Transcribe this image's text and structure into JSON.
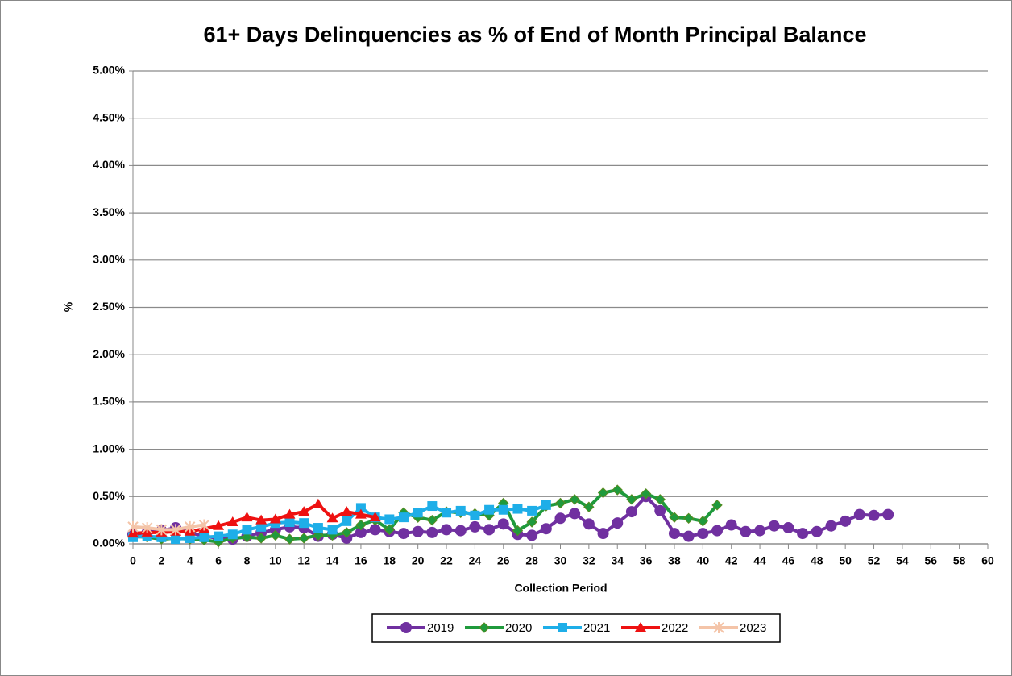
{
  "chart_data": {
    "type": "line",
    "title": "61+ Days Delinquencies as % of End of Month Principal Balance",
    "x_label": "Collection Period",
    "y_label": "%",
    "x": [
      0,
      1,
      2,
      3,
      4,
      5,
      6,
      7,
      8,
      9,
      10,
      11,
      12,
      13,
      14,
      15,
      16,
      17,
      18,
      19,
      20,
      21,
      22,
      23,
      24,
      25,
      26,
      27,
      28,
      29,
      30,
      31,
      32,
      33,
      34,
      35,
      36,
      37,
      38,
      39,
      40,
      41,
      42,
      43,
      44,
      45,
      46,
      47,
      48,
      49,
      50,
      51,
      52,
      53
    ],
    "xlim": [
      0,
      60
    ],
    "xticks": [
      0,
      2,
      4,
      6,
      8,
      10,
      12,
      14,
      16,
      18,
      20,
      22,
      24,
      26,
      28,
      30,
      32,
      34,
      36,
      38,
      40,
      42,
      44,
      46,
      48,
      50,
      52,
      54,
      56,
      58,
      60
    ],
    "ylim": [
      0,
      5
    ],
    "yticks": [
      {
        "value": 0,
        "label": "0.00%"
      },
      {
        "value": 0.5,
        "label": "0.50%"
      },
      {
        "value": 1,
        "label": "1.00%"
      },
      {
        "value": 1.5,
        "label": "1.50%"
      },
      {
        "value": 2,
        "label": "2.00%"
      },
      {
        "value": 2.5,
        "label": "2.50%"
      },
      {
        "value": 3,
        "label": "3.00%"
      },
      {
        "value": 3.5,
        "label": "3.50%"
      },
      {
        "value": 4,
        "label": "4.00%"
      },
      {
        "value": 4.5,
        "label": "4.50%"
      },
      {
        "value": 5,
        "label": "5.00%"
      }
    ],
    "grid": true,
    "legend": "bottom",
    "series": [
      {
        "name": "2019",
        "color": "#7030a0",
        "marker": "circle",
        "values": [
          0.1,
          0.12,
          0.14,
          0.17,
          0.12,
          0.08,
          0.06,
          0.05,
          0.08,
          0.12,
          0.15,
          0.18,
          0.17,
          0.08,
          0.1,
          0.06,
          0.12,
          0.15,
          0.13,
          0.11,
          0.13,
          0.12,
          0.15,
          0.14,
          0.18,
          0.15,
          0.21,
          0.1,
          0.09,
          0.16,
          0.27,
          0.32,
          0.21,
          0.11,
          0.22,
          0.34,
          0.5,
          0.35,
          0.11,
          0.08,
          0.11,
          0.14,
          0.2,
          0.13,
          0.14,
          0.19,
          0.17,
          0.11,
          0.13,
          0.19,
          0.24,
          0.31,
          0.3,
          0.31
        ]
      },
      {
        "name": "2020",
        "color": "#1f9a3c",
        "marker": "diamond",
        "values": [
          0.08,
          0.07,
          0.05,
          0.06,
          0.05,
          0.04,
          0.02,
          0.06,
          0.07,
          0.06,
          0.09,
          0.05,
          0.06,
          0.09,
          0.09,
          0.12,
          0.2,
          0.25,
          0.15,
          0.33,
          0.28,
          0.25,
          0.34,
          0.33,
          0.32,
          0.3,
          0.43,
          0.14,
          0.23,
          0.4,
          0.43,
          0.47,
          0.39,
          0.54,
          0.57,
          0.47,
          0.53,
          0.47,
          0.28,
          0.27,
          0.24,
          0.41,
          null,
          null,
          null,
          null,
          null,
          null,
          null,
          null,
          null,
          null,
          null,
          null
        ]
      },
      {
        "name": "2021",
        "color": "#1eaee8",
        "marker": "square",
        "values": [
          0.07,
          0.08,
          0.07,
          0.05,
          0.06,
          0.07,
          0.08,
          0.1,
          0.15,
          0.18,
          0.22,
          0.23,
          0.22,
          0.17,
          0.15,
          0.24,
          0.38,
          0.28,
          0.26,
          0.28,
          0.33,
          0.4,
          0.33,
          0.35,
          0.3,
          0.36,
          0.36,
          0.37,
          0.35,
          0.41,
          null,
          null,
          null,
          null,
          null,
          null,
          null,
          null,
          null,
          null,
          null,
          null,
          null,
          null,
          null,
          null,
          null,
          null,
          null,
          null,
          null,
          null,
          null,
          null
        ]
      },
      {
        "name": "2022",
        "color": "#ee1111",
        "marker": "triangle",
        "values": [
          0.11,
          0.12,
          0.12,
          0.13,
          0.13,
          0.16,
          0.19,
          0.23,
          0.28,
          0.25,
          0.26,
          0.31,
          0.34,
          0.42,
          0.27,
          0.34,
          0.31,
          0.28,
          null,
          null,
          null,
          null,
          null,
          null,
          null,
          null,
          null,
          null,
          null,
          null,
          null,
          null,
          null,
          null,
          null,
          null,
          null,
          null,
          null,
          null,
          null,
          null,
          null,
          null,
          null,
          null,
          null,
          null,
          null,
          null,
          null,
          null,
          null,
          null
        ]
      },
      {
        "name": "2023",
        "color": "#f4c4a8",
        "marker": "star",
        "values": [
          0.18,
          0.17,
          0.15,
          0.15,
          0.18,
          0.2,
          null,
          null,
          null,
          null,
          null,
          null,
          null,
          null,
          null,
          null,
          null,
          null,
          null,
          null,
          null,
          null,
          null,
          null,
          null,
          null,
          null,
          null,
          null,
          null,
          null,
          null,
          null,
          null,
          null,
          null,
          null,
          null,
          null,
          null,
          null,
          null,
          null,
          null,
          null,
          null,
          null,
          null,
          null,
          null,
          null,
          null,
          null,
          null
        ]
      }
    ]
  }
}
